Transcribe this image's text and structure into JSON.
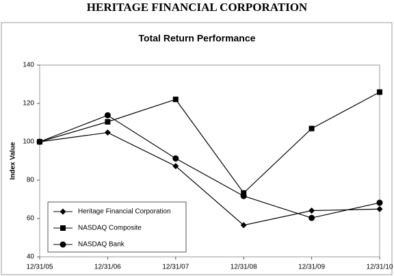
{
  "header": "HERITAGE FINANCIAL CORPORATION",
  "chart_data": {
    "type": "line",
    "title": "Total Return Performance",
    "y_label": "Index Value",
    "categories": [
      "12/31/05",
      "12/31/06",
      "12/31/07",
      "12/31/08",
      "12/31/09",
      "12/31/10"
    ],
    "series": [
      {
        "name": "Heritage Financial Corporation",
        "color": "#000000",
        "marker": "diamond",
        "values": [
          100,
          104.8,
          87.3,
          56.5,
          64.1,
          64.9
        ]
      },
      {
        "name": "NASDAQ Composite",
        "color": "#000000",
        "marker": "square",
        "values": [
          100,
          110.4,
          122.1,
          73.3,
          106.9,
          125.9
        ]
      },
      {
        "name": "NASDAQ Bank",
        "color": "#000000",
        "marker": "circle",
        "values": [
          100,
          113.8,
          91.3,
          71.7,
          60.3,
          68.2
        ]
      }
    ],
    "ylim": [
      40,
      140
    ],
    "yticks": [
      40,
      60,
      80,
      100,
      120,
      140
    ],
    "grid": false,
    "legend": "lower-left"
  }
}
